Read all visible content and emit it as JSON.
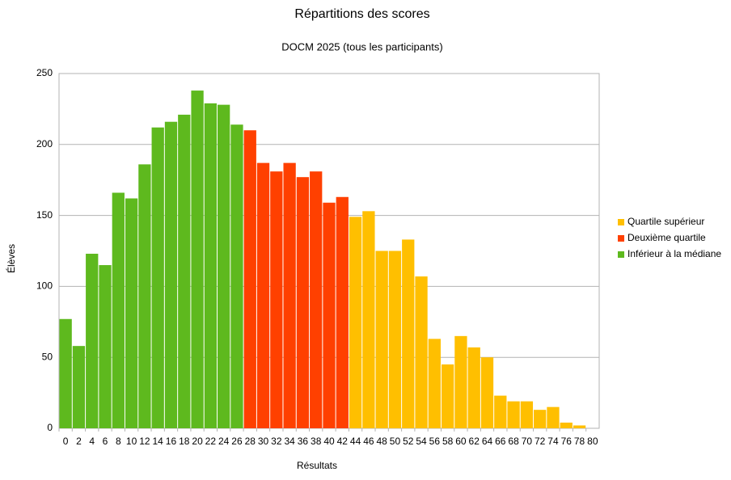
{
  "chart_data": {
    "type": "bar",
    "title": "Répartitions des scores",
    "subtitle": "DOCM 2025 (tous les participants)",
    "x_label": "Résultats",
    "y_label": "Élèves",
    "categories": [
      "0",
      "2",
      "4",
      "6",
      "8",
      "10",
      "12",
      "14",
      "16",
      "18",
      "20",
      "22",
      "24",
      "26",
      "28",
      "30",
      "32",
      "34",
      "36",
      "38",
      "40",
      "42",
      "44",
      "46",
      "48",
      "50",
      "52",
      "54",
      "56",
      "58",
      "60",
      "62",
      "64",
      "66",
      "68",
      "70",
      "72",
      "74",
      "76",
      "78",
      "80"
    ],
    "series": [
      {
        "name": "Quartile supérieur",
        "color": "#ffbf00",
        "values": [
          null,
          null,
          null,
          null,
          null,
          null,
          null,
          null,
          null,
          null,
          null,
          null,
          null,
          null,
          null,
          null,
          null,
          null,
          null,
          null,
          null,
          null,
          149,
          153,
          125,
          125,
          133,
          107,
          63,
          45,
          65,
          57,
          50,
          23,
          19,
          19,
          13,
          15,
          4,
          2,
          null
        ]
      },
      {
        "name": "Deuxième quartile",
        "color": "#ff4000",
        "values": [
          null,
          null,
          null,
          null,
          null,
          null,
          null,
          null,
          null,
          null,
          null,
          null,
          null,
          null,
          210,
          187,
          181,
          187,
          177,
          181,
          159,
          163,
          null,
          null,
          null,
          null,
          null,
          null,
          null,
          null,
          null,
          null,
          null,
          null,
          null,
          null,
          null,
          null,
          null,
          null,
          null
        ]
      },
      {
        "name": "Inférieur à la médiane",
        "color": "#5eb91e",
        "values": [
          77,
          58,
          123,
          115,
          166,
          162,
          186,
          212,
          216,
          221,
          238,
          229,
          228,
          214,
          null,
          null,
          null,
          null,
          null,
          null,
          null,
          null,
          null,
          null,
          null,
          null,
          null,
          null,
          null,
          null,
          null,
          null,
          null,
          null,
          null,
          null,
          null,
          null,
          null,
          null,
          null
        ]
      }
    ],
    "ylim": [
      0,
      250
    ],
    "yticks": [
      0,
      50,
      100,
      150,
      200,
      250
    ],
    "grid": true,
    "legend": "right"
  }
}
